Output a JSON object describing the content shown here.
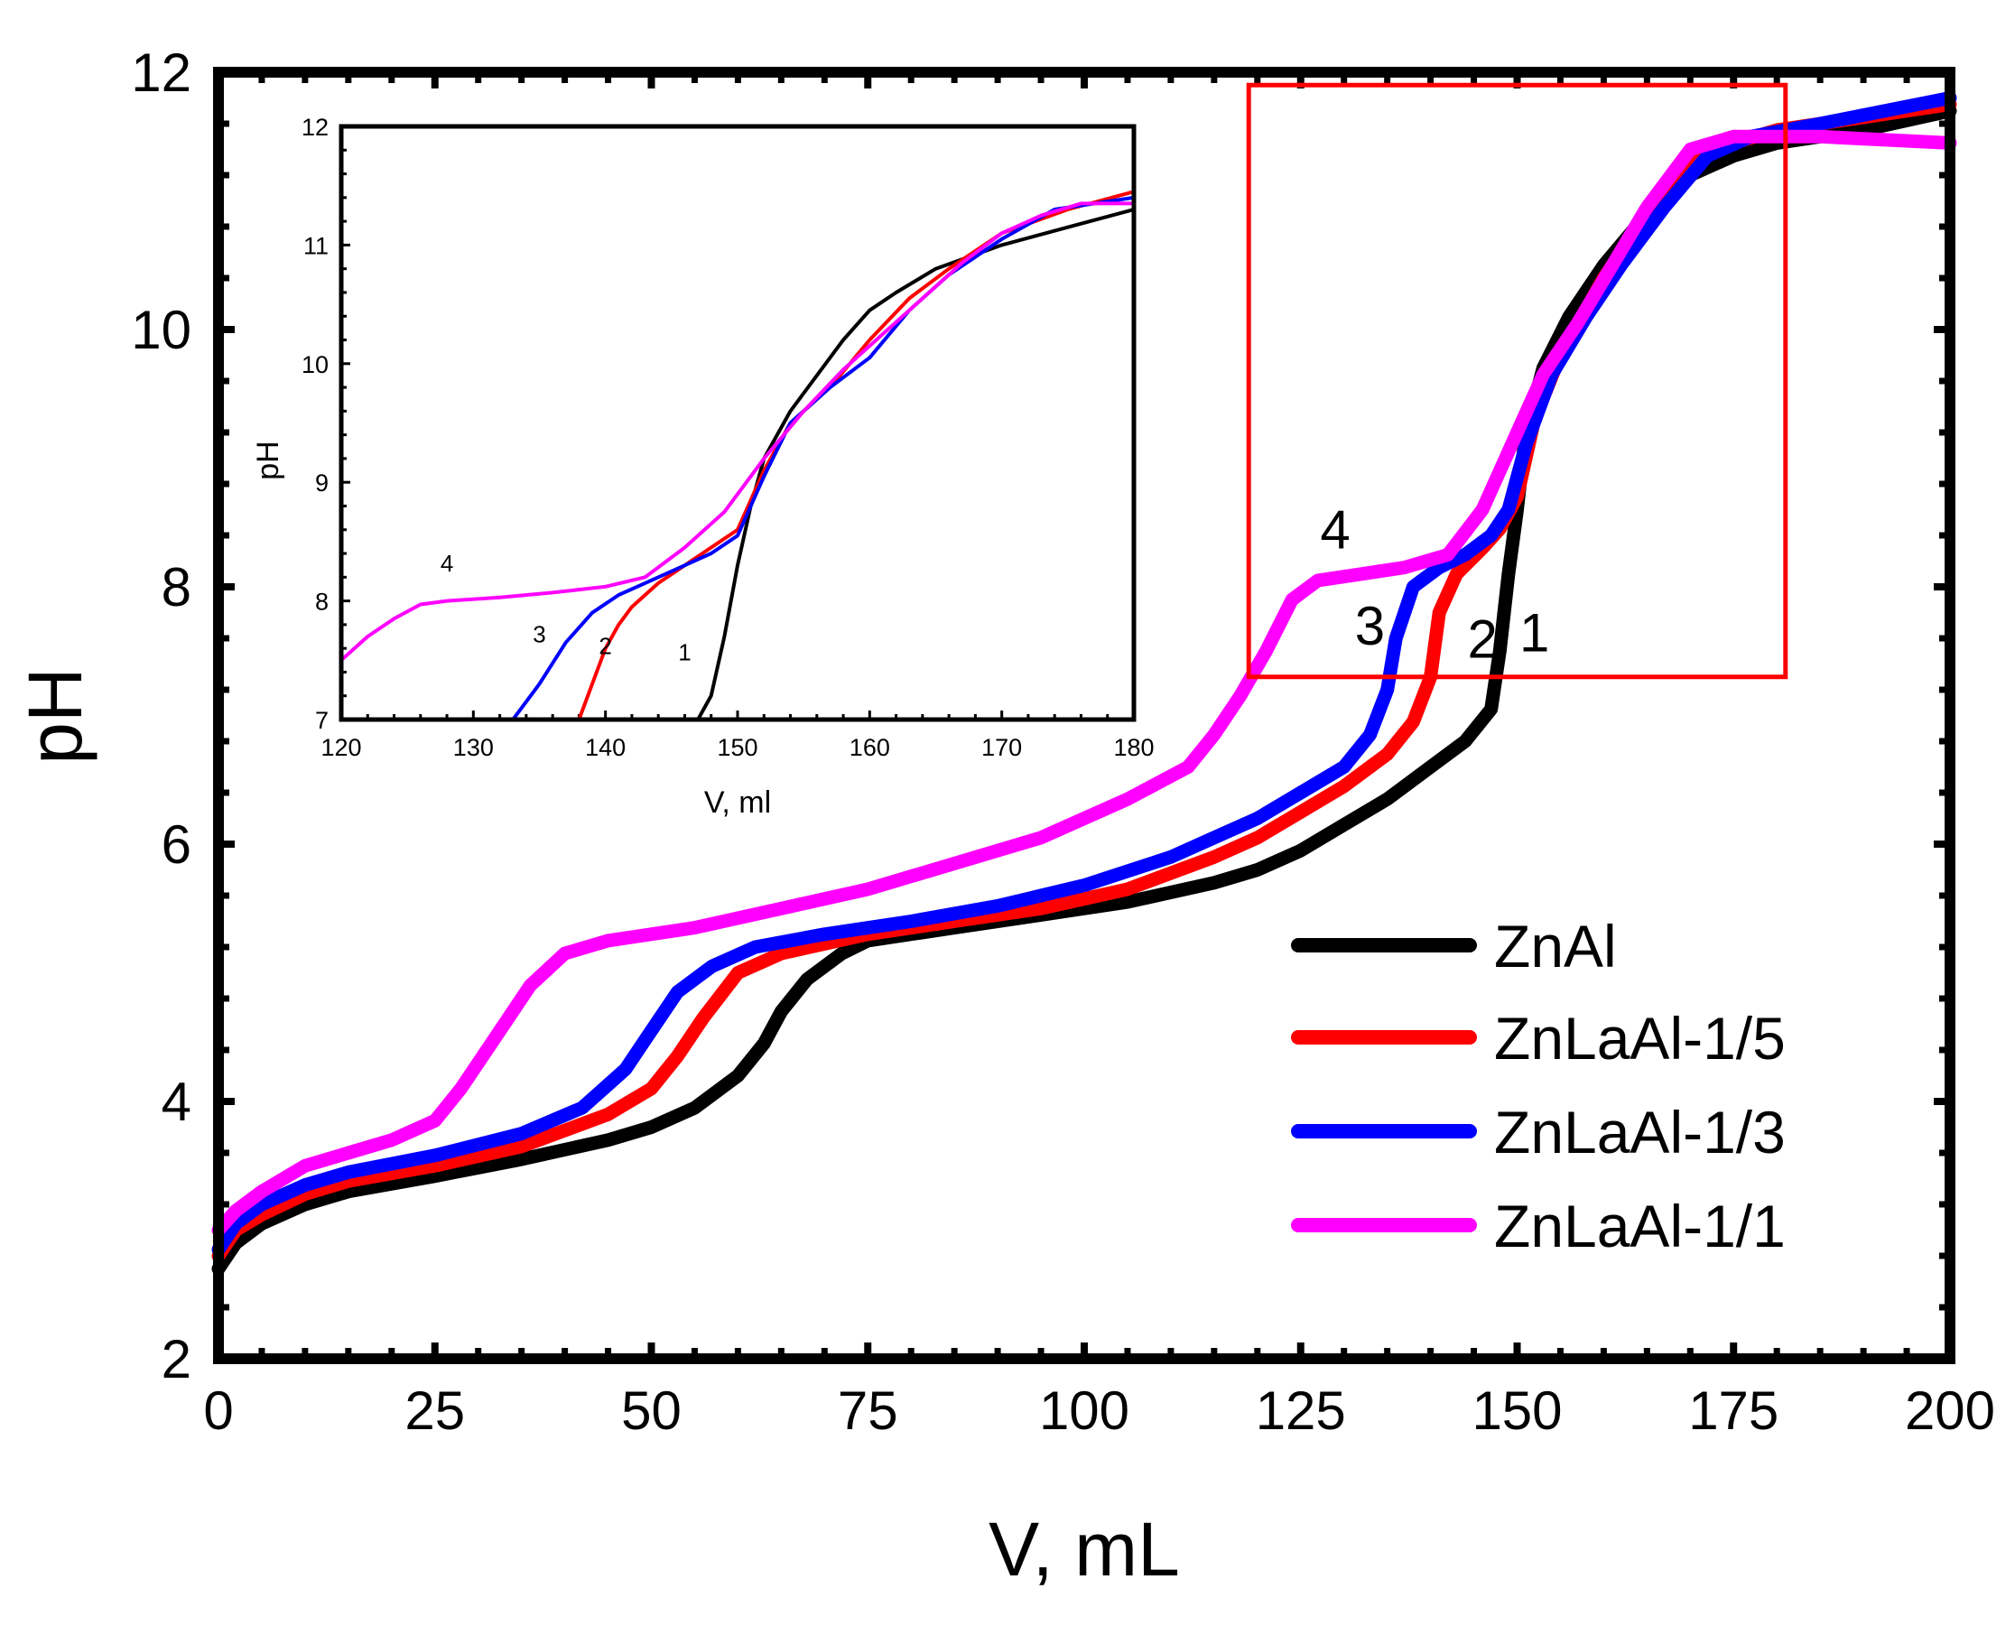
{
  "chart_data": {
    "type": "line",
    "xlabel": "V, mL",
    "ylabel": "pH",
    "xlim": [
      0,
      200
    ],
    "ylim": [
      2,
      12
    ],
    "xticks": [
      0,
      25,
      50,
      75,
      100,
      125,
      150,
      175,
      200
    ],
    "yticks": [
      2,
      4,
      6,
      8,
      10,
      12
    ],
    "legend_position": "bottom-right",
    "series": [
      {
        "name": "ZnAl",
        "color": "#000000",
        "curve_label": "1",
        "points": [
          [
            0,
            2.7
          ],
          [
            2,
            2.9
          ],
          [
            5,
            3.05
          ],
          [
            10,
            3.2
          ],
          [
            15,
            3.3
          ],
          [
            25,
            3.42
          ],
          [
            35,
            3.55
          ],
          [
            45,
            3.7
          ],
          [
            50,
            3.8
          ],
          [
            55,
            3.95
          ],
          [
            60,
            4.2
          ],
          [
            63,
            4.45
          ],
          [
            65,
            4.7
          ],
          [
            68,
            4.95
          ],
          [
            72,
            5.15
          ],
          [
            75,
            5.25
          ],
          [
            85,
            5.35
          ],
          [
            95,
            5.45
          ],
          [
            105,
            5.55
          ],
          [
            115,
            5.7
          ],
          [
            120,
            5.8
          ],
          [
            125,
            5.95
          ],
          [
            130,
            6.15
          ],
          [
            135,
            6.35
          ],
          [
            140,
            6.6
          ],
          [
            144,
            6.8
          ],
          [
            147,
            7.05
          ],
          [
            148,
            7.5
          ],
          [
            149,
            8.1
          ],
          [
            150,
            8.6
          ],
          [
            151,
            9.2
          ],
          [
            153,
            9.7
          ],
          [
            156,
            10.1
          ],
          [
            160,
            10.5
          ],
          [
            165,
            10.9
          ],
          [
            170,
            11.2
          ],
          [
            175,
            11.35
          ],
          [
            180,
            11.45
          ],
          [
            190,
            11.55
          ],
          [
            200,
            11.7
          ]
        ]
      },
      {
        "name": "ZnLaAl-1/5",
        "color": "#ff0000",
        "curve_label": "2",
        "points": [
          [
            0,
            2.8
          ],
          [
            2,
            3.0
          ],
          [
            5,
            3.12
          ],
          [
            10,
            3.28
          ],
          [
            15,
            3.38
          ],
          [
            25,
            3.5
          ],
          [
            35,
            3.65
          ],
          [
            45,
            3.9
          ],
          [
            50,
            4.1
          ],
          [
            53,
            4.35
          ],
          [
            56,
            4.65
          ],
          [
            60,
            5.0
          ],
          [
            65,
            5.15
          ],
          [
            75,
            5.3
          ],
          [
            85,
            5.4
          ],
          [
            95,
            5.5
          ],
          [
            105,
            5.65
          ],
          [
            115,
            5.9
          ],
          [
            120,
            6.05
          ],
          [
            125,
            6.25
          ],
          [
            130,
            6.45
          ],
          [
            135,
            6.7
          ],
          [
            138,
            6.95
          ],
          [
            140,
            7.3
          ],
          [
            141,
            7.8
          ],
          [
            143,
            8.1
          ],
          [
            146,
            8.3
          ],
          [
            148,
            8.45
          ],
          [
            150,
            8.7
          ],
          [
            152,
            9.3
          ],
          [
            155,
            9.8
          ],
          [
            160,
            10.4
          ],
          [
            165,
            10.9
          ],
          [
            170,
            11.3
          ],
          [
            175,
            11.45
          ],
          [
            180,
            11.55
          ],
          [
            190,
            11.65
          ],
          [
            200,
            11.75
          ]
        ]
      },
      {
        "name": "ZnLaAl-1/3",
        "color": "#0000ff",
        "curve_label": "3",
        "points": [
          [
            0,
            2.85
          ],
          [
            2,
            3.05
          ],
          [
            5,
            3.2
          ],
          [
            10,
            3.35
          ],
          [
            15,
            3.45
          ],
          [
            25,
            3.58
          ],
          [
            35,
            3.75
          ],
          [
            42,
            3.95
          ],
          [
            47,
            4.25
          ],
          [
            50,
            4.55
          ],
          [
            53,
            4.85
          ],
          [
            57,
            5.05
          ],
          [
            62,
            5.2
          ],
          [
            70,
            5.3
          ],
          [
            80,
            5.4
          ],
          [
            90,
            5.52
          ],
          [
            100,
            5.68
          ],
          [
            110,
            5.9
          ],
          [
            115,
            6.05
          ],
          [
            120,
            6.2
          ],
          [
            125,
            6.4
          ],
          [
            130,
            6.6
          ],
          [
            133,
            6.85
          ],
          [
            135,
            7.2
          ],
          [
            136,
            7.6
          ],
          [
            138,
            8.0
          ],
          [
            141,
            8.15
          ],
          [
            144,
            8.25
          ],
          [
            147,
            8.4
          ],
          [
            149,
            8.6
          ],
          [
            151,
            9.1
          ],
          [
            154,
            9.65
          ],
          [
            158,
            10.1
          ],
          [
            162,
            10.5
          ],
          [
            167,
            10.95
          ],
          [
            172,
            11.35
          ],
          [
            177,
            11.5
          ],
          [
            185,
            11.6
          ],
          [
            200,
            11.8
          ]
        ]
      },
      {
        "name": "ZnLaAl-1/1",
        "color": "#ff00ff",
        "curve_label": "4",
        "points": [
          [
            0,
            3.0
          ],
          [
            2,
            3.15
          ],
          [
            5,
            3.3
          ],
          [
            10,
            3.5
          ],
          [
            15,
            3.6
          ],
          [
            20,
            3.7
          ],
          [
            25,
            3.85
          ],
          [
            28,
            4.1
          ],
          [
            32,
            4.5
          ],
          [
            36,
            4.9
          ],
          [
            40,
            5.15
          ],
          [
            45,
            5.25
          ],
          [
            55,
            5.35
          ],
          [
            65,
            5.5
          ],
          [
            75,
            5.65
          ],
          [
            85,
            5.85
          ],
          [
            95,
            6.05
          ],
          [
            105,
            6.35
          ],
          [
            112,
            6.6
          ],
          [
            115,
            6.85
          ],
          [
            118,
            7.15
          ],
          [
            121,
            7.5
          ],
          [
            124,
            7.9
          ],
          [
            127,
            8.05
          ],
          [
            132,
            8.1
          ],
          [
            137,
            8.15
          ],
          [
            142,
            8.25
          ],
          [
            146,
            8.6
          ],
          [
            150,
            9.2
          ],
          [
            153,
            9.65
          ],
          [
            157,
            10.05
          ],
          [
            161,
            10.5
          ],
          [
            165,
            10.95
          ],
          [
            170,
            11.4
          ],
          [
            175,
            11.5
          ],
          [
            185,
            11.5
          ],
          [
            200,
            11.45
          ]
        ]
      }
    ],
    "highlight_box": {
      "x_range": [
        119,
        181
      ],
      "y_range": [
        7.3,
        11.9
      ],
      "color": "#ff0000"
    },
    "inset": {
      "xlabel": "V, ml",
      "ylabel": "pH",
      "xlim": [
        120,
        180
      ],
      "ylim": [
        7,
        12
      ],
      "xticks": [
        120,
        130,
        140,
        150,
        160,
        170,
        180
      ],
      "yticks": [
        7,
        8,
        9,
        10,
        11,
        12
      ],
      "series": [
        {
          "name": "ZnAl",
          "color": "#000000",
          "curve_label": "1",
          "points": [
            [
              147,
              7.0
            ],
            [
              148,
              7.2
            ],
            [
              149,
              7.7
            ],
            [
              150,
              8.3
            ],
            [
              151,
              8.8
            ],
            [
              152,
              9.2
            ],
            [
              154,
              9.6
            ],
            [
              156,
              9.9
            ],
            [
              158,
              10.2
            ],
            [
              160,
              10.45
            ],
            [
              162,
              10.6
            ],
            [
              165,
              10.8
            ],
            [
              170,
              11.0
            ],
            [
              175,
              11.15
            ],
            [
              180,
              11.3
            ]
          ]
        },
        {
          "name": "ZnLaAl-1/5",
          "color": "#ff0000",
          "curve_label": "2",
          "points": [
            [
              138,
              7.0
            ],
            [
              139,
              7.3
            ],
            [
              140,
              7.6
            ],
            [
              141,
              7.8
            ],
            [
              142,
              7.95
            ],
            [
              144,
              8.15
            ],
            [
              146,
              8.3
            ],
            [
              148,
              8.45
            ],
            [
              150,
              8.6
            ],
            [
              152,
              9.1
            ],
            [
              154,
              9.5
            ],
            [
              157,
              9.8
            ],
            [
              160,
              10.2
            ],
            [
              163,
              10.55
            ],
            [
              166,
              10.8
            ],
            [
              170,
              11.1
            ],
            [
              175,
              11.3
            ],
            [
              180,
              11.45
            ]
          ]
        },
        {
          "name": "ZnLaAl-1/3",
          "color": "#0000ff",
          "curve_label": "3",
          "points": [
            [
              133,
              7.0
            ],
            [
              135,
              7.3
            ],
            [
              137,
              7.65
            ],
            [
              139,
              7.9
            ],
            [
              141,
              8.05
            ],
            [
              143,
              8.15
            ],
            [
              145,
              8.25
            ],
            [
              148,
              8.4
            ],
            [
              150,
              8.55
            ],
            [
              152,
              9.05
            ],
            [
              154,
              9.5
            ],
            [
              157,
              9.8
            ],
            [
              160,
              10.05
            ],
            [
              163,
              10.45
            ],
            [
              166,
              10.75
            ],
            [
              170,
              11.05
            ],
            [
              174,
              11.3
            ],
            [
              177,
              11.35
            ],
            [
              180,
              11.4
            ]
          ]
        },
        {
          "name": "ZnLaAl-1/1",
          "color": "#ff00ff",
          "curve_label": "4",
          "points": [
            [
              120,
              7.5
            ],
            [
              122,
              7.7
            ],
            [
              124,
              7.85
            ],
            [
              126,
              7.97
            ],
            [
              128,
              8.0
            ],
            [
              132,
              8.03
            ],
            [
              136,
              8.07
            ],
            [
              140,
              8.12
            ],
            [
              143,
              8.2
            ],
            [
              146,
              8.45
            ],
            [
              149,
              8.75
            ],
            [
              152,
              9.2
            ],
            [
              155,
              9.6
            ],
            [
              158,
              9.95
            ],
            [
              161,
              10.25
            ],
            [
              164,
              10.55
            ],
            [
              167,
              10.85
            ],
            [
              170,
              11.1
            ],
            [
              173,
              11.25
            ],
            [
              176,
              11.35
            ],
            [
              180,
              11.35
            ]
          ]
        }
      ],
      "curve_label_positions": {
        "1": [
          146,
          7.5
        ],
        "2": [
          140,
          7.55
        ],
        "3": [
          135,
          7.65
        ],
        "4": [
          128,
          8.25
        ]
      }
    },
    "main_curve_label_positions": {
      "1": [
        152,
        7.5
      ],
      "2": [
        146,
        7.45
      ],
      "3": [
        133,
        7.55
      ],
      "4": [
        129,
        8.3
      ]
    }
  }
}
